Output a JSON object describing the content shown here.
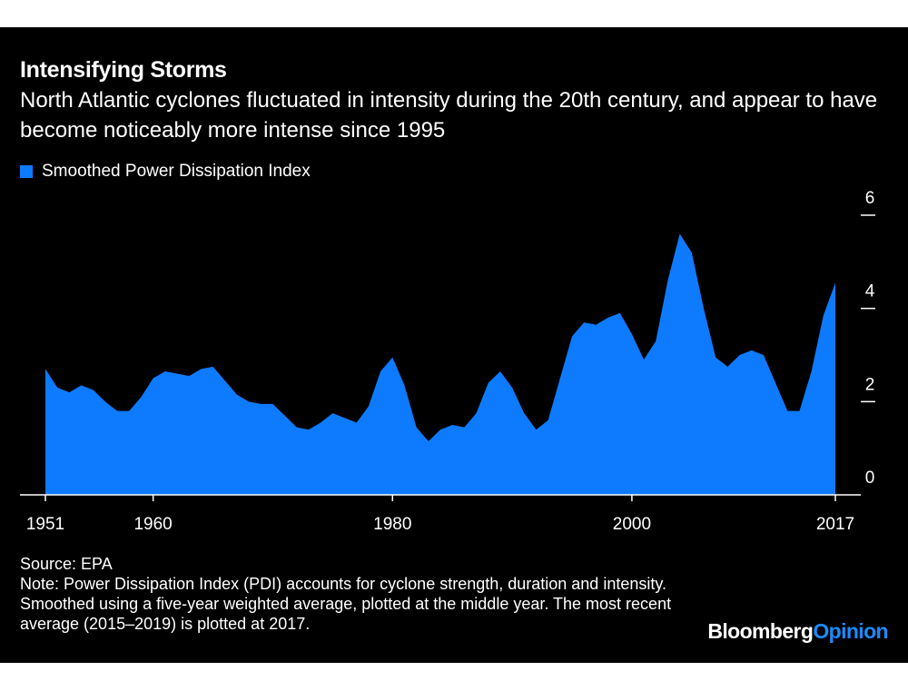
{
  "header": {
    "title": "Intensifying Storms",
    "subtitle": "North Atlantic cyclones fluctuated in intensity during the 20th century, and appear to have become noticeably more intense since 1995"
  },
  "colors": {
    "background": "#000000",
    "series": "#0e7bff",
    "text": "#ffffff",
    "brand_accent": "#1a8cff"
  },
  "footer": {
    "source": "Source: EPA",
    "note": "Note: Power Dissipation Index (PDI) accounts for cyclone strength, duration and intensity. Smoothed using a five-year weighted average, plotted at the middle year. The most recent average (2015–2019) is plotted at 2017."
  },
  "brand": {
    "name": "Bloomberg",
    "suffix": "Opinion"
  },
  "chart_data": {
    "type": "area",
    "title": "Intensifying Storms",
    "subtitle": "North Atlantic cyclones fluctuated in intensity during the 20th century, and appear to have become noticeably more intense since 1995",
    "xlabel": "",
    "ylabel": "",
    "legend_position": "top-left",
    "grid": false,
    "xlim": [
      1951,
      2017
    ],
    "ylim": [
      0,
      6
    ],
    "x_ticks": [
      1951,
      1960,
      1980,
      2000,
      2017
    ],
    "y_ticks": [
      0,
      2,
      4,
      6
    ],
    "y_axis_side": "right",
    "x": [
      1951,
      1952,
      1953,
      1954,
      1955,
      1956,
      1957,
      1958,
      1959,
      1960,
      1961,
      1962,
      1963,
      1964,
      1965,
      1966,
      1967,
      1968,
      1969,
      1970,
      1971,
      1972,
      1973,
      1974,
      1975,
      1976,
      1977,
      1978,
      1979,
      1980,
      1981,
      1982,
      1983,
      1984,
      1985,
      1986,
      1987,
      1988,
      1989,
      1990,
      1991,
      1992,
      1993,
      1994,
      1995,
      1996,
      1997,
      1998,
      1999,
      2000,
      2001,
      2002,
      2003,
      2004,
      2005,
      2006,
      2007,
      2008,
      2009,
      2010,
      2011,
      2012,
      2013,
      2014,
      2015,
      2016,
      2017
    ],
    "series": [
      {
        "name": "Smoothed Power Dissipation Index",
        "values": [
          2.7,
          2.3,
          2.2,
          2.35,
          2.25,
          2.0,
          1.8,
          1.8,
          2.1,
          2.5,
          2.65,
          2.6,
          2.55,
          2.7,
          2.75,
          2.45,
          2.15,
          2.0,
          1.95,
          1.95,
          1.7,
          1.45,
          1.4,
          1.55,
          1.75,
          1.65,
          1.55,
          1.9,
          2.65,
          2.95,
          2.35,
          1.45,
          1.15,
          1.4,
          1.5,
          1.45,
          1.75,
          2.4,
          2.65,
          2.3,
          1.75,
          1.4,
          1.6,
          2.5,
          3.4,
          3.7,
          3.65,
          3.8,
          3.9,
          3.45,
          2.9,
          3.3,
          4.6,
          5.6,
          5.2,
          4.0,
          2.95,
          2.75,
          3.0,
          3.1,
          3.0,
          2.4,
          1.8,
          1.8,
          2.65,
          3.85,
          4.55
        ]
      }
    ]
  }
}
